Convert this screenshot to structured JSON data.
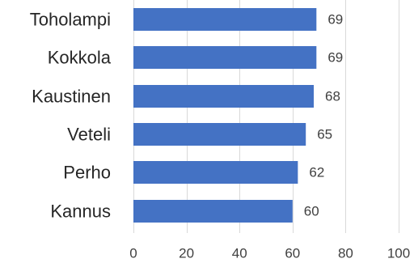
{
  "chart_data": {
    "type": "bar",
    "orientation": "horizontal",
    "categories": [
      "Toholampi",
      "Kokkola",
      "Kaustinen",
      "Veteli",
      "Perho",
      "Kannus"
    ],
    "values": [
      69,
      69,
      68,
      65,
      62,
      60
    ],
    "data_labels": [
      "69",
      "69",
      "68",
      "65",
      "62",
      "60"
    ],
    "xlim": [
      0,
      100
    ],
    "x_ticks": [
      0,
      20,
      40,
      60,
      80,
      100
    ],
    "x_tick_labels": [
      "0",
      "20",
      "40",
      "60",
      "80",
      "100"
    ],
    "grid": "vertical",
    "legend": "none",
    "colors": {
      "bar": "#4472C4",
      "grid": "#d9d9d9",
      "text": "#262626",
      "tick_text": "#404040"
    }
  }
}
